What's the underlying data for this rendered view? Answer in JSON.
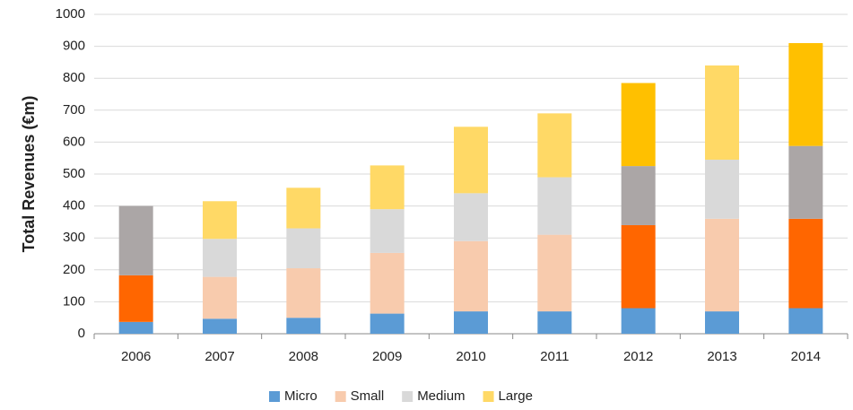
{
  "chart_data": {
    "type": "stacked_bar",
    "y_label": "Total Revenues (€m)",
    "categories": [
      "2006",
      "2007",
      "2008",
      "2009",
      "2010",
      "2011",
      "2012",
      "2013",
      "2014"
    ],
    "series": [
      {
        "name": "Micro",
        "color": "#5b9bd5",
        "colors": [
          "#5b9bd5",
          "#5b9bd5",
          "#5b9bd5",
          "#5b9bd5",
          "#5b9bd5",
          "#5b9bd5",
          "#5b9bd5",
          "#5b9bd5",
          "#5b9bd5"
        ],
        "values": [
          37,
          47,
          50,
          63,
          70,
          70,
          80,
          70,
          80
        ]
      },
      {
        "name": "Small",
        "color": "#f8cbad",
        "colors": [
          "#ff6600",
          "#f8cbad",
          "#f8cbad",
          "#f8cbad",
          "#f8cbad",
          "#f8cbad",
          "#ff6600",
          "#f8cbad",
          "#ff6600"
        ],
        "values": [
          146,
          131,
          155,
          190,
          220,
          240,
          260,
          290,
          280
        ]
      },
      {
        "name": "Medium",
        "color": "#d9d9d9",
        "colors": [
          "#aba6a6",
          "#d9d9d9",
          "#d9d9d9",
          "#d9d9d9",
          "#d9d9d9",
          "#d9d9d9",
          "#aba6a6",
          "#d9d9d9",
          "#aba6a6"
        ],
        "values": [
          217,
          119,
          125,
          137,
          150,
          180,
          185,
          185,
          228
        ]
      },
      {
        "name": "Large",
        "color": "#ffd966",
        "colors": [
          "#ffc000",
          "#ffd966",
          "#ffd966",
          "#ffd966",
          "#ffd966",
          "#ffd966",
          "#ffc000",
          "#ffd966",
          "#ffc000"
        ],
        "values": [
          0,
          118,
          127,
          137,
          208,
          200,
          260,
          295,
          322
        ]
      }
    ],
    "ylim": [
      0,
      1000
    ],
    "yticks": [
      0,
      100,
      200,
      300,
      400,
      500,
      600,
      700,
      800,
      900,
      1000
    ],
    "grid": true,
    "legend": "bottom"
  }
}
